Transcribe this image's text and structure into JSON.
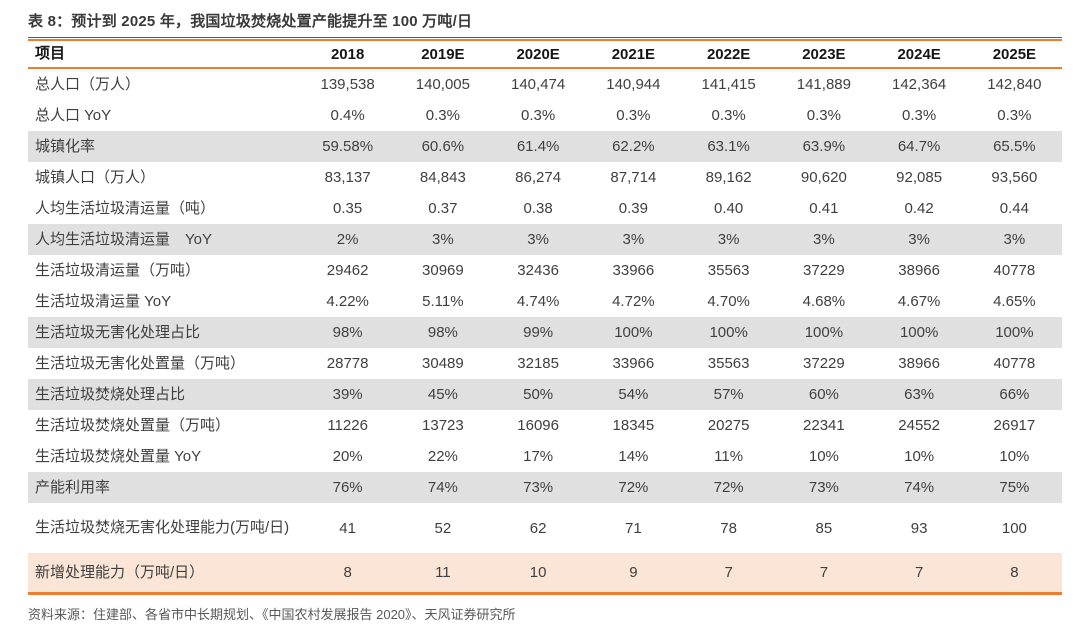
{
  "table": {
    "title": "表 8：预计到 2025 年，我国垃圾焚烧处置产能提升至 100 万吨/日",
    "columns": [
      "项目",
      "2018",
      "2019E",
      "2020E",
      "2021E",
      "2022E",
      "2023E",
      "2024E",
      "2025E"
    ],
    "rows": [
      {
        "label": "总人口（万人）",
        "values": [
          "139,538",
          "140,005",
          "140,474",
          "140,944",
          "141,415",
          "141,889",
          "142,364",
          "142,840"
        ],
        "highlight": "none"
      },
      {
        "label": "总人口 YoY",
        "values": [
          "0.4%",
          "0.3%",
          "0.3%",
          "0.3%",
          "0.3%",
          "0.3%",
          "0.3%",
          "0.3%"
        ],
        "highlight": "none"
      },
      {
        "label": "城镇化率",
        "values": [
          "59.58%",
          "60.6%",
          "61.4%",
          "62.2%",
          "63.1%",
          "63.9%",
          "64.7%",
          "65.5%"
        ],
        "highlight": "gray"
      },
      {
        "label": "城镇人口（万人）",
        "values": [
          "83,137",
          "84,843",
          "86,274",
          "87,714",
          "89,162",
          "90,620",
          "92,085",
          "93,560"
        ],
        "highlight": "none"
      },
      {
        "label": "人均生活垃圾清运量（吨）",
        "values": [
          "0.35",
          "0.37",
          "0.38",
          "0.39",
          "0.40",
          "0.41",
          "0.42",
          "0.44"
        ],
        "highlight": "none"
      },
      {
        "label": "人均生活垃圾清运量　YoY",
        "values": [
          "2%",
          "3%",
          "3%",
          "3%",
          "3%",
          "3%",
          "3%",
          "3%"
        ],
        "highlight": "gray"
      },
      {
        "label": "生活垃圾清运量（万吨）",
        "values": [
          "29462",
          "30969",
          "32436",
          "33966",
          "35563",
          "37229",
          "38966",
          "40778"
        ],
        "highlight": "none"
      },
      {
        "label": "生活垃圾清运量 YoY",
        "values": [
          "4.22%",
          "5.11%",
          "4.74%",
          "4.72%",
          "4.70%",
          "4.68%",
          "4.67%",
          "4.65%"
        ],
        "highlight": "none"
      },
      {
        "label": "生活垃圾无害化处理占比",
        "values": [
          "98%",
          "98%",
          "99%",
          "100%",
          "100%",
          "100%",
          "100%",
          "100%"
        ],
        "highlight": "gray"
      },
      {
        "label": "生活垃圾无害化处置量（万吨）",
        "values": [
          "28778",
          "30489",
          "32185",
          "33966",
          "35563",
          "37229",
          "38966",
          "40778"
        ],
        "highlight": "none"
      },
      {
        "label": "生活垃圾焚烧处理占比",
        "values": [
          "39%",
          "45%",
          "50%",
          "54%",
          "57%",
          "60%",
          "63%",
          "66%"
        ],
        "highlight": "gray"
      },
      {
        "label": "生活垃圾焚烧处置量（万吨）",
        "values": [
          "11226",
          "13723",
          "16096",
          "18345",
          "20275",
          "22341",
          "24552",
          "26917"
        ],
        "highlight": "none"
      },
      {
        "label": "生活垃圾焚烧处置量 YoY",
        "values": [
          "20%",
          "22%",
          "17%",
          "14%",
          "11%",
          "10%",
          "10%",
          "10%"
        ],
        "highlight": "none"
      },
      {
        "label": "产能利用率",
        "values": [
          "76%",
          "74%",
          "73%",
          "72%",
          "72%",
          "73%",
          "74%",
          "75%"
        ],
        "highlight": "gray"
      },
      {
        "label": "生活垃圾焚烧无害化处理能力(万吨/日)",
        "values": [
          "41",
          "52",
          "62",
          "71",
          "78",
          "85",
          "93",
          "100"
        ],
        "highlight": "none",
        "tall": true
      },
      {
        "label": "新增处理能力（万吨/日）",
        "values": [
          "8",
          "11",
          "10",
          "9",
          "7",
          "7",
          "7",
          "8"
        ],
        "highlight": "peach"
      }
    ],
    "source": "资料来源：住建部、各省市中长期规划、《中国农村发展报告 2020》、天风证券研究所"
  },
  "colors": {
    "accent_orange": "#ed7d31",
    "rule_dark_edge": "#9c4a12",
    "row_gray": "#e0e0e0",
    "row_peach": "#fbe5d6",
    "body_text": "#3f3f3f",
    "header_text": "#161616",
    "source_text": "#595959"
  }
}
